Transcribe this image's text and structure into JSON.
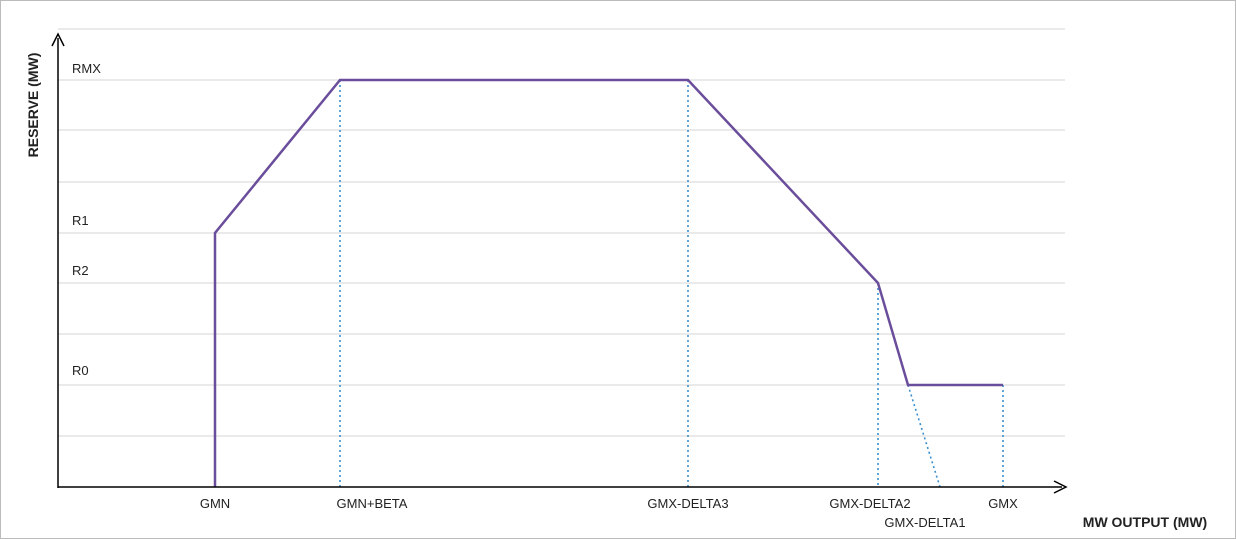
{
  "y_axis": {
    "title": "RESERVE (MW)",
    "levels": [
      "RMX",
      "R1",
      "R2",
      "R0"
    ]
  },
  "x_axis": {
    "title": "MW OUTPUT (MW)",
    "points": [
      "GMN",
      "GMN+BETA",
      "GMX-DELTA3",
      "GMX-DELTA2",
      "GMX-DELTA1",
      "GMX"
    ]
  }
}
